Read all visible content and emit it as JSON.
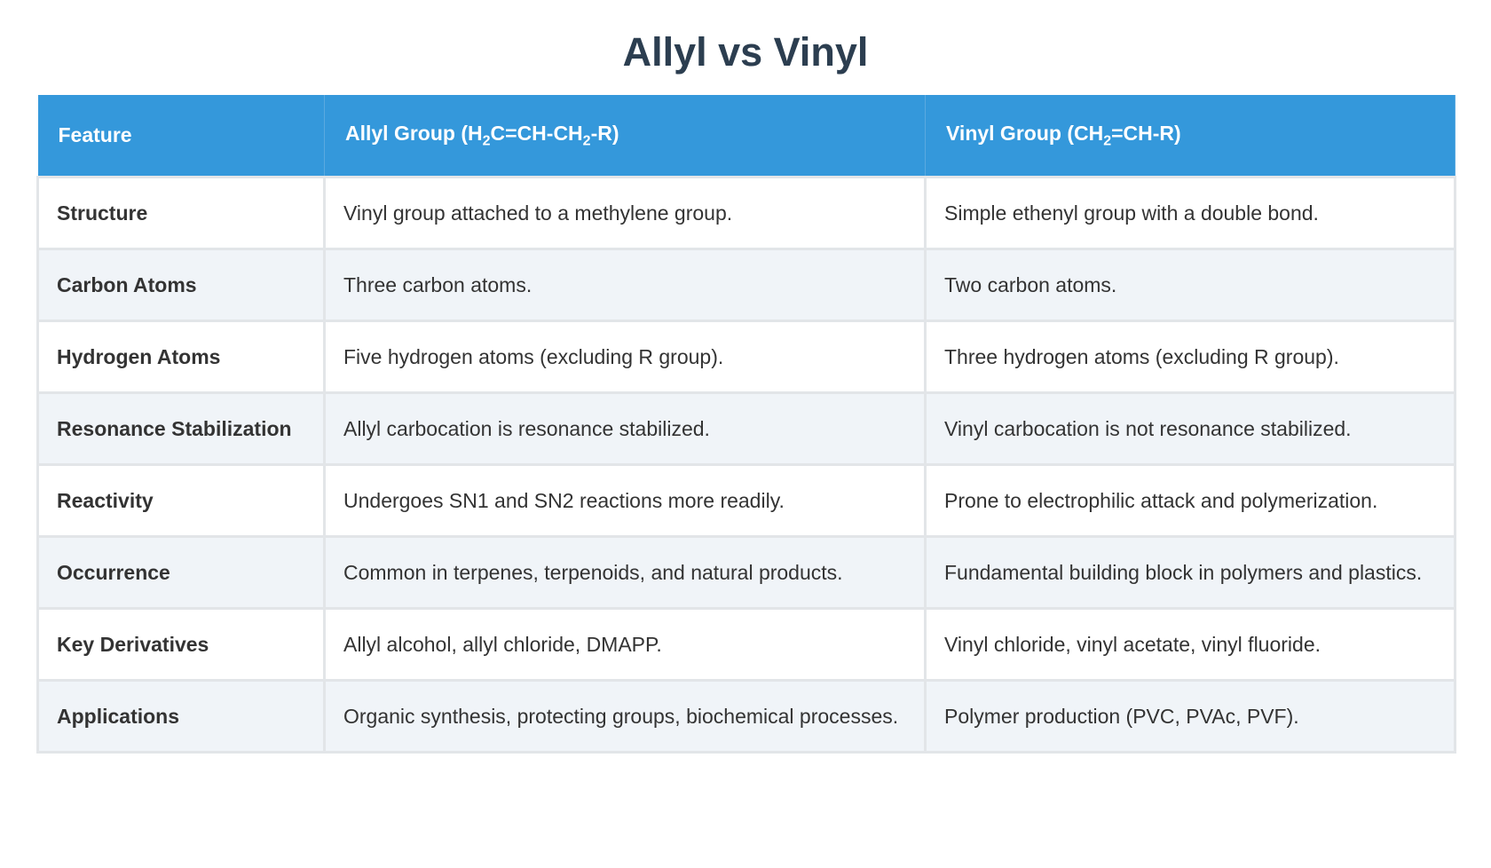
{
  "title": "Allyl vs Vinyl",
  "table": {
    "header": [
      [
        "Feature"
      ],
      [
        "Allyl Group (H",
        "2",
        "C=CH-CH",
        "2",
        "-R)"
      ],
      [
        "Vinyl Group (CH",
        "2",
        "=CH-R)"
      ]
    ],
    "rows": [
      [
        "Structure",
        "Vinyl group attached to a methylene group.",
        "Simple ethenyl group with a double bond."
      ],
      [
        "Carbon Atoms",
        "Three carbon atoms.",
        "Two carbon atoms."
      ],
      [
        "Hydrogen Atoms",
        "Five hydrogen atoms (excluding R group).",
        "Three hydrogen atoms (excluding R group)."
      ],
      [
        "Resonance Stabilization",
        "Allyl carbocation is resonance stabilized.",
        "Vinyl carbocation is not resonance stabilized."
      ],
      [
        "Reactivity",
        "Undergoes SN1 and SN2 reactions more readily.",
        "Prone to electrophilic attack and polymerization."
      ],
      [
        "Occurrence",
        "Common in terpenes, terpenoids, and natural products.",
        "Fundamental building block in polymers and plastics."
      ],
      [
        "Key Derivatives",
        "Allyl alcohol, allyl chloride, DMAPP.",
        "Vinyl chloride, vinyl acetate, vinyl fluoride."
      ],
      [
        "Applications",
        "Organic synthesis, protecting groups, biochemical processes.",
        "Polymer production (PVC, PVAc, PVF)."
      ]
    ]
  }
}
